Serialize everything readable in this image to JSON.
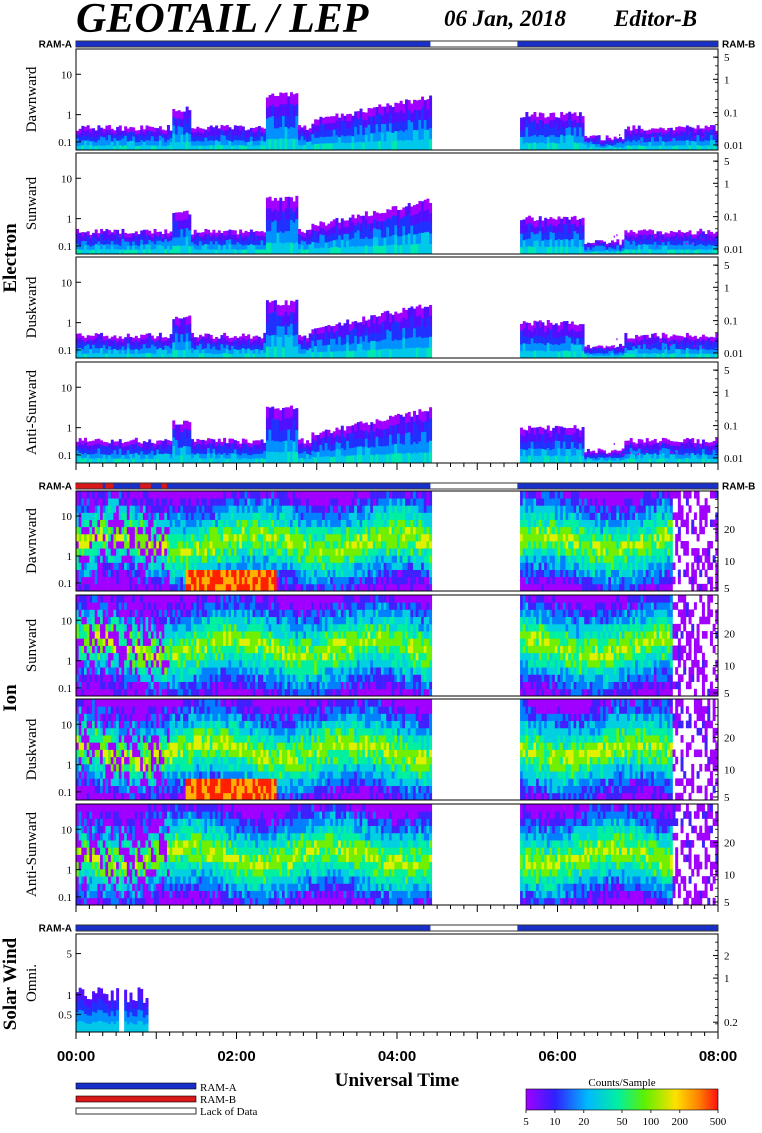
{
  "header": {
    "title": "GEOTAIL / LEP",
    "date": "06 Jan, 2018",
    "editor": "Editor-B"
  },
  "colors": {
    "ram_a": "#1830c8",
    "ram_b": "#d81818",
    "lack": "#ffffff"
  },
  "chart_data": {
    "type": "heatmap",
    "xlabel": "Universal Time",
    "x_range": [
      "00:00",
      "08:00"
    ],
    "x_ticks": [
      "00:00",
      "02:00",
      "04:00",
      "06:00",
      "08:00"
    ],
    "data_gap": [
      "04:25",
      "05:30"
    ],
    "groups": [
      {
        "name": "Electron",
        "ram_left": "RAM-A",
        "ram_right": "RAM-B",
        "panels": [
          {
            "name": "Dawnward",
            "left_ticks": [
              "10",
              "1",
              "0.1"
            ],
            "right_ticks": [
              "5",
              "1",
              "0.1",
              "0.01"
            ]
          },
          {
            "name": "Sunward",
            "left_ticks": [
              "10",
              "1",
              "0.1"
            ],
            "right_ticks": [
              "5",
              "1",
              "0.1",
              "0.01"
            ]
          },
          {
            "name": "Duskward",
            "left_ticks": [
              "10",
              "1",
              "0.1"
            ],
            "right_ticks": [
              "5",
              "1",
              "0.1",
              "0.01"
            ]
          },
          {
            "name": "Anti-Sunward",
            "left_ticks": [
              "10",
              "1",
              "0.1"
            ],
            "right_ticks": [
              "5",
              "1",
              "0.1",
              "0.01"
            ]
          }
        ]
      },
      {
        "name": "Ion",
        "ram_left": "RAM-A",
        "ram_right": "RAM-B",
        "panels": [
          {
            "name": "Dawnward",
            "left_ticks": [
              "10",
              "1",
              "0.1"
            ],
            "right_ticks": [
              "20",
              "10",
              "5"
            ]
          },
          {
            "name": "Sunward",
            "left_ticks": [
              "10",
              "1",
              "0.1"
            ],
            "right_ticks": [
              "20",
              "10",
              "5"
            ]
          },
          {
            "name": "Duskward",
            "left_ticks": [
              "10",
              "1",
              "0.1"
            ],
            "right_ticks": [
              "20",
              "10",
              "5"
            ]
          },
          {
            "name": "Anti-Sunward",
            "left_ticks": [
              "10",
              "1",
              "0.1"
            ],
            "right_ticks": [
              "20",
              "10",
              "5"
            ]
          }
        ]
      },
      {
        "name": "Solar Wind",
        "ram_left": "RAM-A",
        "ram_right": "",
        "panels": [
          {
            "name": "Omni.",
            "left_ticks": [
              "5",
              "1",
              "0.5"
            ],
            "right_ticks": [
              "2",
              "1",
              "0.2"
            ]
          }
        ]
      }
    ],
    "legend": {
      "items": [
        "RAM-A",
        "RAM-B",
        "Lack of Data"
      ],
      "colorbar_title": "Counts/Sample",
      "colorbar_ticks": [
        "5",
        "10",
        "20",
        "50",
        "100",
        "200",
        "500"
      ]
    }
  }
}
